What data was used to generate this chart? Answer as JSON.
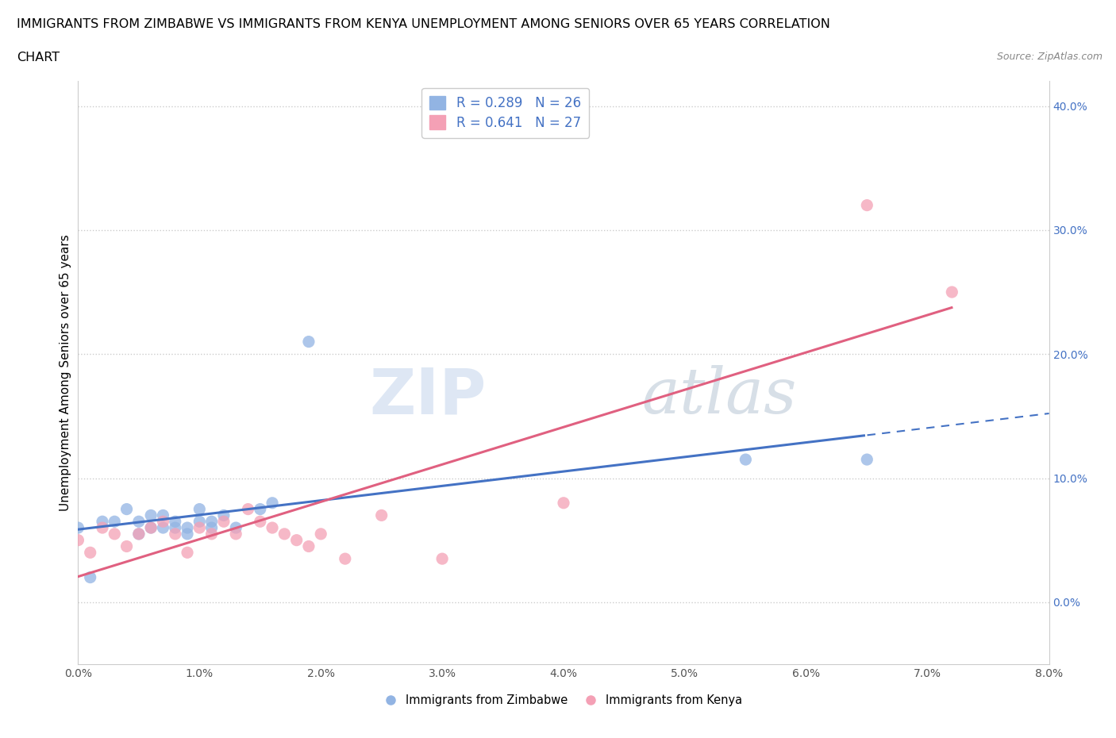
{
  "title_line1": "IMMIGRANTS FROM ZIMBABWE VS IMMIGRANTS FROM KENYA UNEMPLOYMENT AMONG SENIORS OVER 65 YEARS CORRELATION",
  "title_line2": "CHART",
  "source": "Source: ZipAtlas.com",
  "ylabel": "Unemployment Among Seniors over 65 years",
  "legend_zimbabwe": "R = 0.289   N = 26",
  "legend_kenya": "R = 0.641   N = 27",
  "legend_label_zimbabwe": "Immigrants from Zimbabwe",
  "legend_label_kenya": "Immigrants from Kenya",
  "zimbabwe_color": "#92b4e3",
  "kenya_color": "#f4a0b5",
  "trend_blue": "#4472c4",
  "trend_pink": "#e06080",
  "zimbabwe_x": [
    0.0,
    0.001,
    0.002,
    0.003,
    0.004,
    0.005,
    0.005,
    0.006,
    0.006,
    0.007,
    0.007,
    0.008,
    0.008,
    0.009,
    0.009,
    0.01,
    0.01,
    0.011,
    0.011,
    0.012,
    0.013,
    0.015,
    0.016,
    0.019,
    0.055,
    0.065
  ],
  "zimbabwe_y": [
    0.06,
    0.02,
    0.065,
    0.065,
    0.075,
    0.055,
    0.065,
    0.06,
    0.07,
    0.06,
    0.07,
    0.06,
    0.065,
    0.055,
    0.06,
    0.065,
    0.075,
    0.06,
    0.065,
    0.07,
    0.06,
    0.075,
    0.08,
    0.21,
    0.115,
    0.115
  ],
  "kenya_x": [
    0.0,
    0.001,
    0.002,
    0.003,
    0.004,
    0.005,
    0.006,
    0.007,
    0.008,
    0.009,
    0.01,
    0.011,
    0.012,
    0.013,
    0.014,
    0.015,
    0.016,
    0.017,
    0.018,
    0.019,
    0.02,
    0.022,
    0.025,
    0.03,
    0.04,
    0.065,
    0.072
  ],
  "kenya_y": [
    0.05,
    0.04,
    0.06,
    0.055,
    0.045,
    0.055,
    0.06,
    0.065,
    0.055,
    0.04,
    0.06,
    0.055,
    0.065,
    0.055,
    0.075,
    0.065,
    0.06,
    0.055,
    0.05,
    0.045,
    0.055,
    0.035,
    0.07,
    0.035,
    0.08,
    0.32,
    0.25
  ],
  "xlim": [
    0.0,
    0.08
  ],
  "ylim": [
    -0.05,
    0.42
  ],
  "yticks_right": [
    0.0,
    0.1,
    0.2,
    0.3,
    0.4
  ],
  "ytick_labels_right": [
    "0.0%",
    "10.0%",
    "20.0%",
    "30.0%",
    "40.0%"
  ],
  "xtick_vals": [
    0.0,
    0.01,
    0.02,
    0.03,
    0.04,
    0.05,
    0.06,
    0.07,
    0.08
  ],
  "xtick_labels": [
    "0.0%",
    "1.0%",
    "2.0%",
    "3.0%",
    "4.0%",
    "5.0%",
    "6.0%",
    "7.0%",
    "8.0%"
  ],
  "background_color": "#ffffff",
  "watermark_zip": "ZIP",
  "watermark_atlas": "atlas",
  "title_fontsize": 11.5,
  "axis_label_fontsize": 11,
  "tick_fontsize": 10
}
